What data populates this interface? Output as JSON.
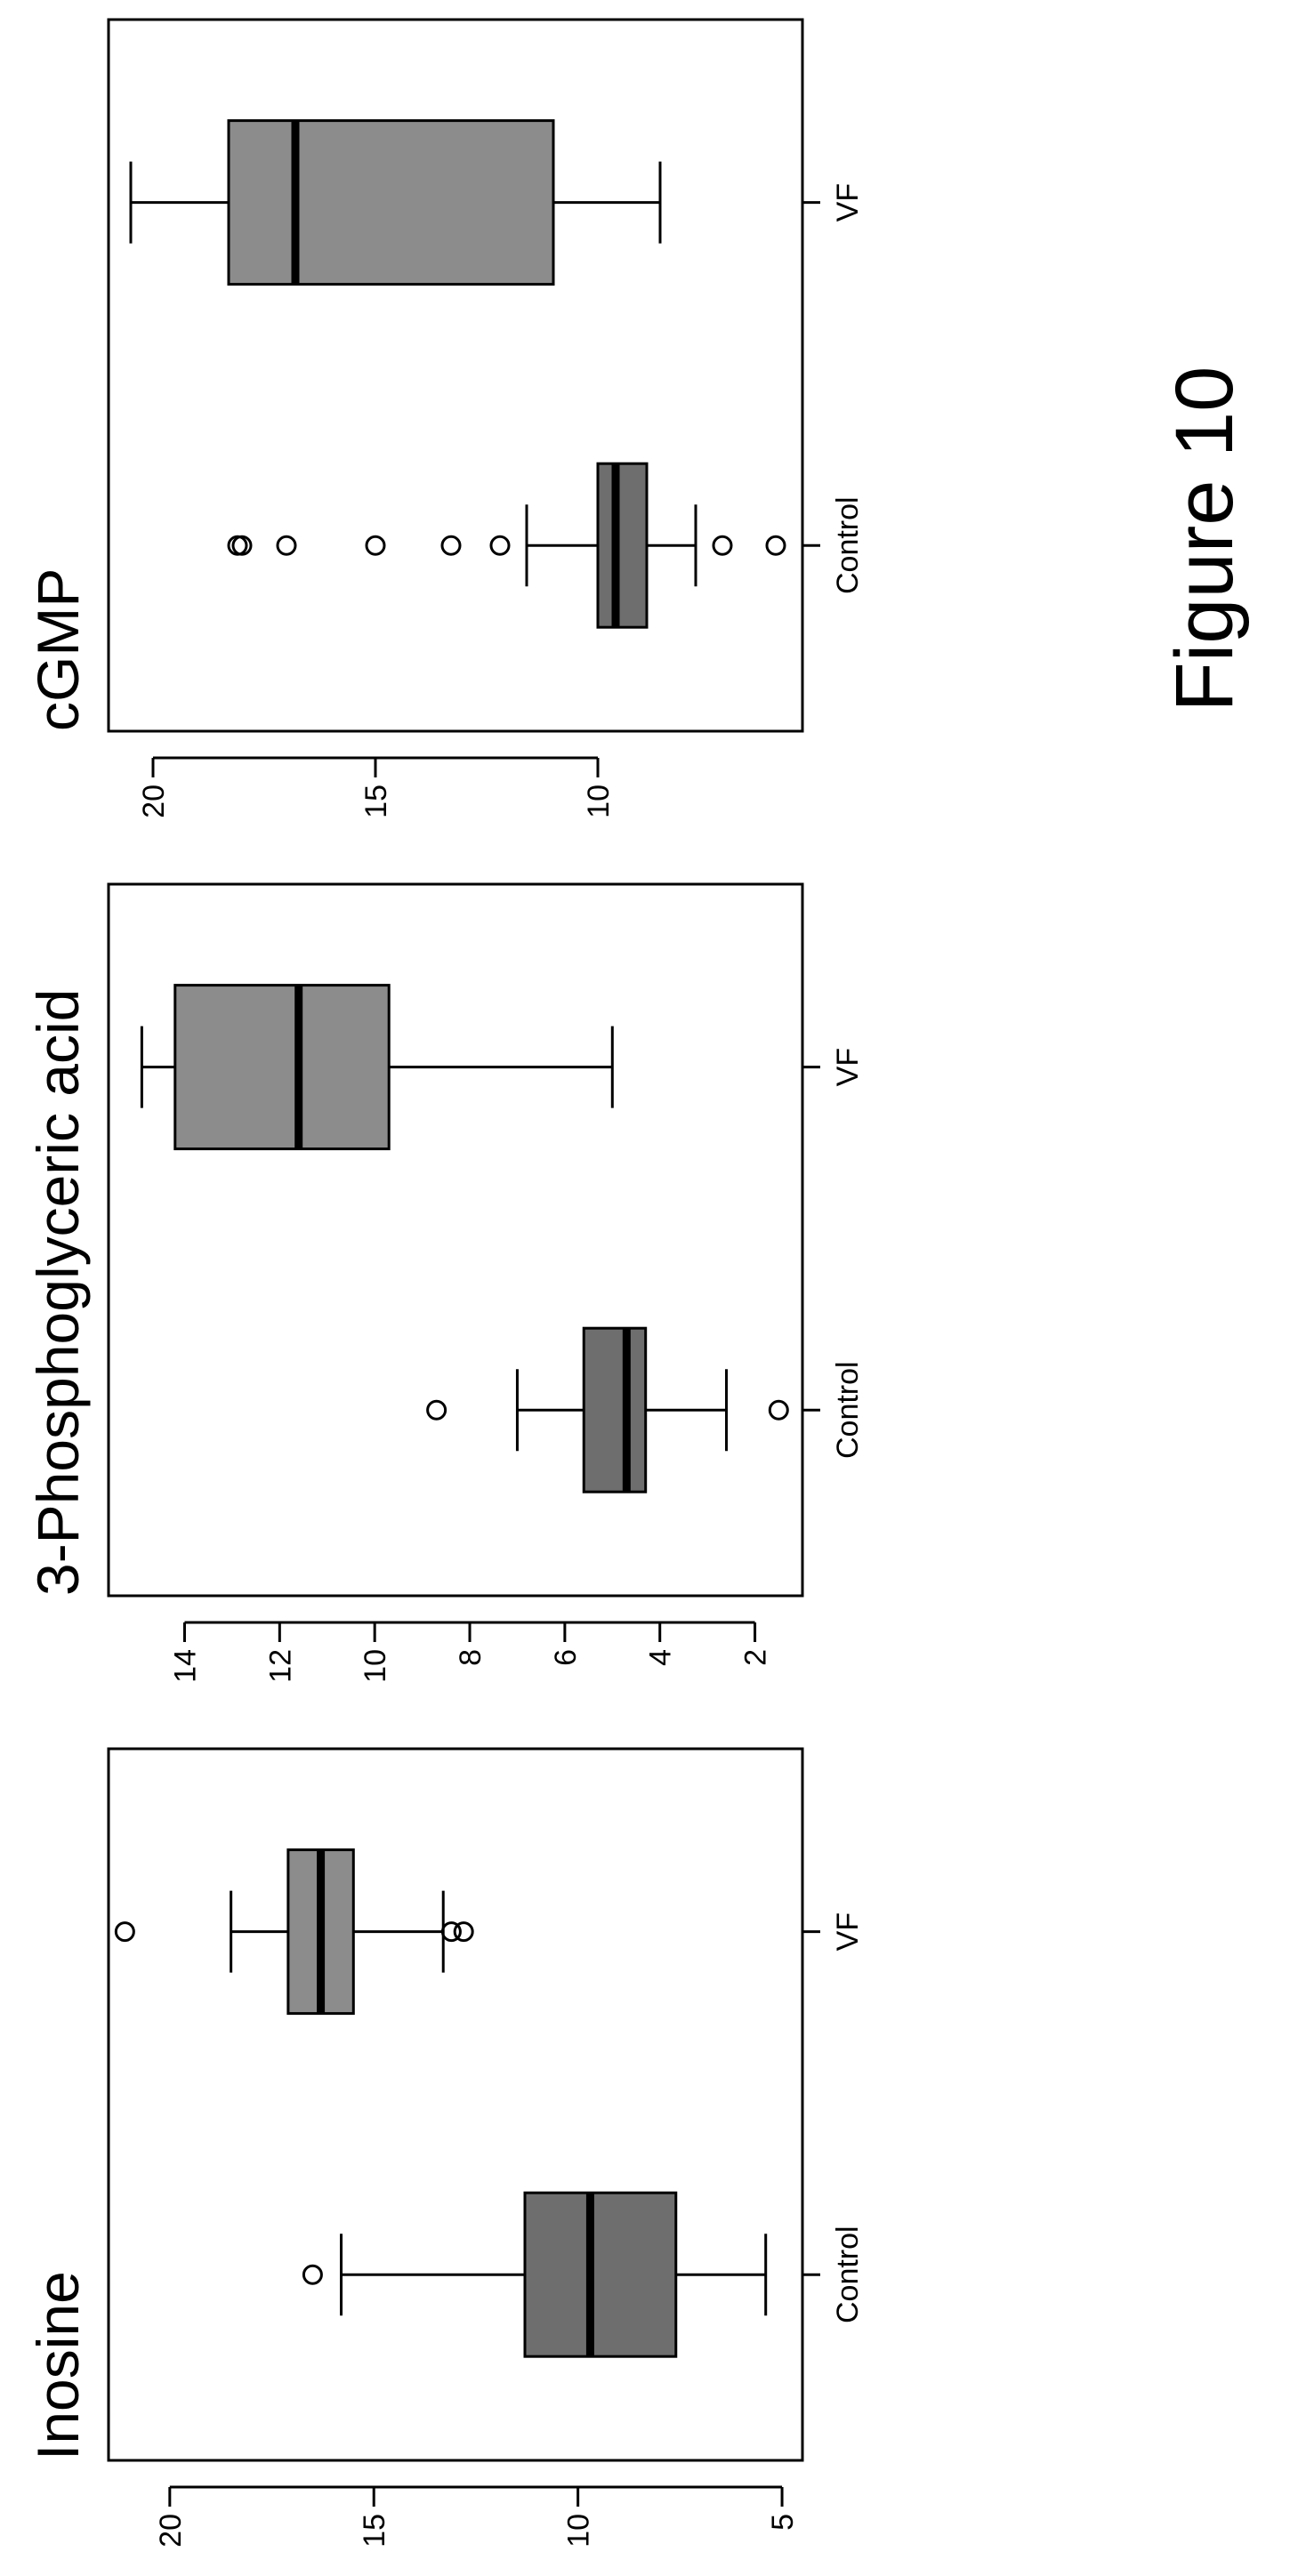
{
  "figure_label": "Figure 10",
  "colors": {
    "control_box": "#6e6e6e",
    "vf_box": "#8c8c8c",
    "line": "#000000"
  },
  "chart_data": [
    {
      "type": "boxplot",
      "title": "Inosine",
      "categories": [
        "Control",
        "VF"
      ],
      "ylim": [
        4.5,
        21.5
      ],
      "yticks": [
        5,
        10,
        15,
        20
      ],
      "grid": false,
      "boxes": [
        {
          "category": "Control",
          "whisker_low": 5.4,
          "q1": 7.6,
          "median": 9.7,
          "q3": 11.3,
          "whisker_high": 15.8,
          "outliers": [
            16.5
          ]
        },
        {
          "category": "VF",
          "whisker_low": 13.3,
          "q1": 15.5,
          "median": 16.3,
          "q3": 17.1,
          "whisker_high": 18.5,
          "outliers": [
            12.8,
            13.1,
            21.1
          ]
        }
      ]
    },
    {
      "type": "boxplot",
      "title": "3-Phosphoglyceric acid",
      "categories": [
        "Control",
        "VF"
      ],
      "ylim": [
        1.0,
        15.6
      ],
      "yticks": [
        2,
        4,
        6,
        8,
        10,
        12,
        14
      ],
      "grid": false,
      "boxes": [
        {
          "category": "Control",
          "whisker_low": 2.6,
          "q1": 4.3,
          "median": 4.7,
          "q3": 5.6,
          "whisker_high": 7.0,
          "outliers": [
            1.5,
            8.7
          ]
        },
        {
          "category": "VF",
          "whisker_low": 5.0,
          "q1": 9.7,
          "median": 11.6,
          "q3": 14.2,
          "whisker_high": 14.9,
          "outliers": []
        }
      ]
    },
    {
      "type": "boxplot",
      "title": "cGMP",
      "categories": [
        "Control",
        "VF"
      ],
      "ylim": [
        5.4,
        21.0
      ],
      "yticks": [
        10,
        15,
        20
      ],
      "grid": false,
      "boxes": [
        {
          "category": "Control",
          "whisker_low": 7.8,
          "q1": 8.9,
          "median": 9.6,
          "q3": 10.0,
          "whisker_high": 11.6,
          "outliers": [
            6.0,
            7.2,
            12.2,
            13.3,
            15.0,
            17.0,
            18.0,
            18.1
          ]
        },
        {
          "category": "VF",
          "whisker_low": 8.6,
          "q1": 11.0,
          "median": 16.8,
          "q3": 18.3,
          "whisker_high": 20.5,
          "outliers": []
        }
      ]
    }
  ]
}
